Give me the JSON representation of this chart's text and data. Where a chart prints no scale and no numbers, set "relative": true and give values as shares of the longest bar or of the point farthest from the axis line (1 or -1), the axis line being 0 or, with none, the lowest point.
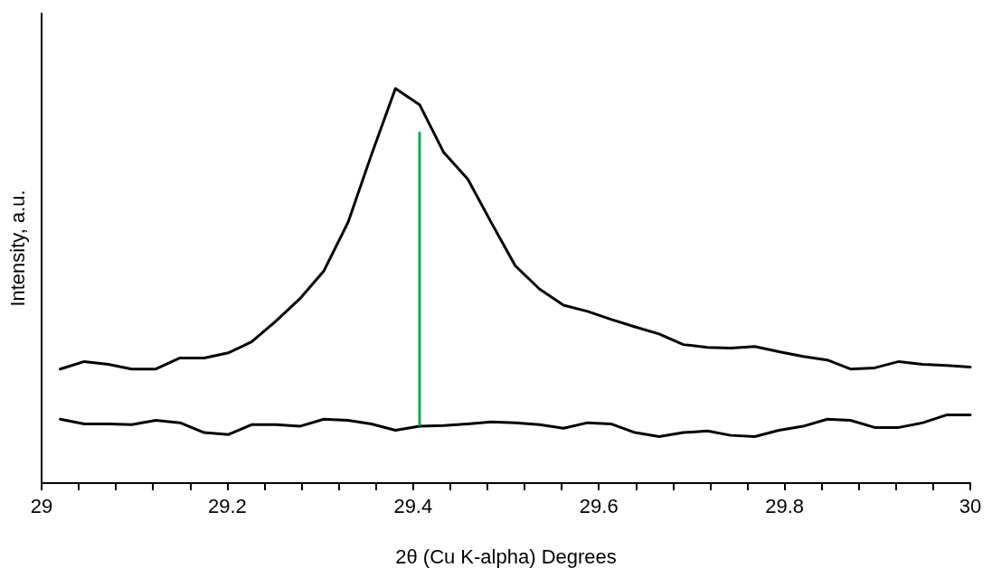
{
  "chart_data": {
    "type": "line",
    "xlabel": "2θ (Cu K-alpha) Degrees",
    "ylabel": "Intensity, a.u.",
    "relative": true,
    "x": [
      29.02,
      29.046,
      29.072,
      29.097,
      29.123,
      29.149,
      29.175,
      29.201,
      29.226,
      29.252,
      29.278,
      29.304,
      29.33,
      29.355,
      29.381,
      29.407,
      29.433,
      29.459,
      29.484,
      29.51,
      29.536,
      29.562,
      29.588,
      29.613,
      29.639,
      29.665,
      29.691,
      29.717,
      29.742,
      29.768,
      29.794,
      29.82,
      29.846,
      29.871,
      29.897,
      29.923,
      29.949,
      29.975,
      30.0
    ],
    "series": [
      {
        "color": "#000000",
        "values": [
          0.289,
          0.308,
          0.301,
          0.289,
          0.289,
          0.317,
          0.317,
          0.33,
          0.358,
          0.41,
          0.467,
          0.538,
          0.661,
          0.831,
          1.0,
          0.959,
          0.838,
          0.77,
          0.661,
          0.551,
          0.492,
          0.451,
          0.435,
          0.415,
          0.396,
          0.378,
          0.351,
          0.344,
          0.342,
          0.346,
          0.333,
          0.321,
          0.312,
          0.289,
          0.292,
          0.308,
          0.301,
          0.298,
          0.294
        ]
      },
      {
        "color": "#000000",
        "values": [
          0.162,
          0.15,
          0.15,
          0.148,
          0.159,
          0.153,
          0.128,
          0.123,
          0.148,
          0.148,
          0.144,
          0.162,
          0.159,
          0.15,
          0.134,
          0.144,
          0.146,
          0.15,
          0.155,
          0.153,
          0.148,
          0.139,
          0.153,
          0.15,
          0.128,
          0.118,
          0.128,
          0.132,
          0.121,
          0.118,
          0.134,
          0.144,
          0.162,
          0.159,
          0.141,
          0.141,
          0.153,
          0.173,
          0.173
        ]
      },
      {
        "color": "#00b050",
        "x": [
          29.407,
          29.407
        ],
        "values": [
          0.148,
          0.888
        ]
      }
    ],
    "xlim": [
      29,
      30
    ],
    "xticks": [
      {
        "value": 29,
        "label": "29"
      },
      {
        "value": 29.04,
        "label": null
      },
      {
        "value": 29.08,
        "label": null
      },
      {
        "value": 29.12,
        "label": null
      },
      {
        "value": 29.16,
        "label": null
      },
      {
        "value": 29.2,
        "label": "29.2"
      },
      {
        "value": 29.24,
        "label": null
      },
      {
        "value": 29.28,
        "label": null
      },
      {
        "value": 29.32,
        "label": null
      },
      {
        "value": 29.36,
        "label": null
      },
      {
        "value": 29.4,
        "label": "29.4"
      },
      {
        "value": 29.44,
        "label": null
      },
      {
        "value": 29.48,
        "label": null
      },
      {
        "value": 29.52,
        "label": null
      },
      {
        "value": 29.56,
        "label": null
      },
      {
        "value": 29.6,
        "label": "29.6"
      },
      {
        "value": 29.64,
        "label": null
      },
      {
        "value": 29.68,
        "label": null
      },
      {
        "value": 29.72,
        "label": null
      },
      {
        "value": 29.76,
        "label": null
      },
      {
        "value": 29.8,
        "label": "29.8"
      },
      {
        "value": 29.84,
        "label": null
      },
      {
        "value": 29.88,
        "label": null
      },
      {
        "value": 29.92,
        "label": null
      },
      {
        "value": 29.96,
        "label": null
      },
      {
        "value": 30,
        "label": "30"
      }
    ],
    "grid": false,
    "marker": "none",
    "line_style": "solid"
  }
}
